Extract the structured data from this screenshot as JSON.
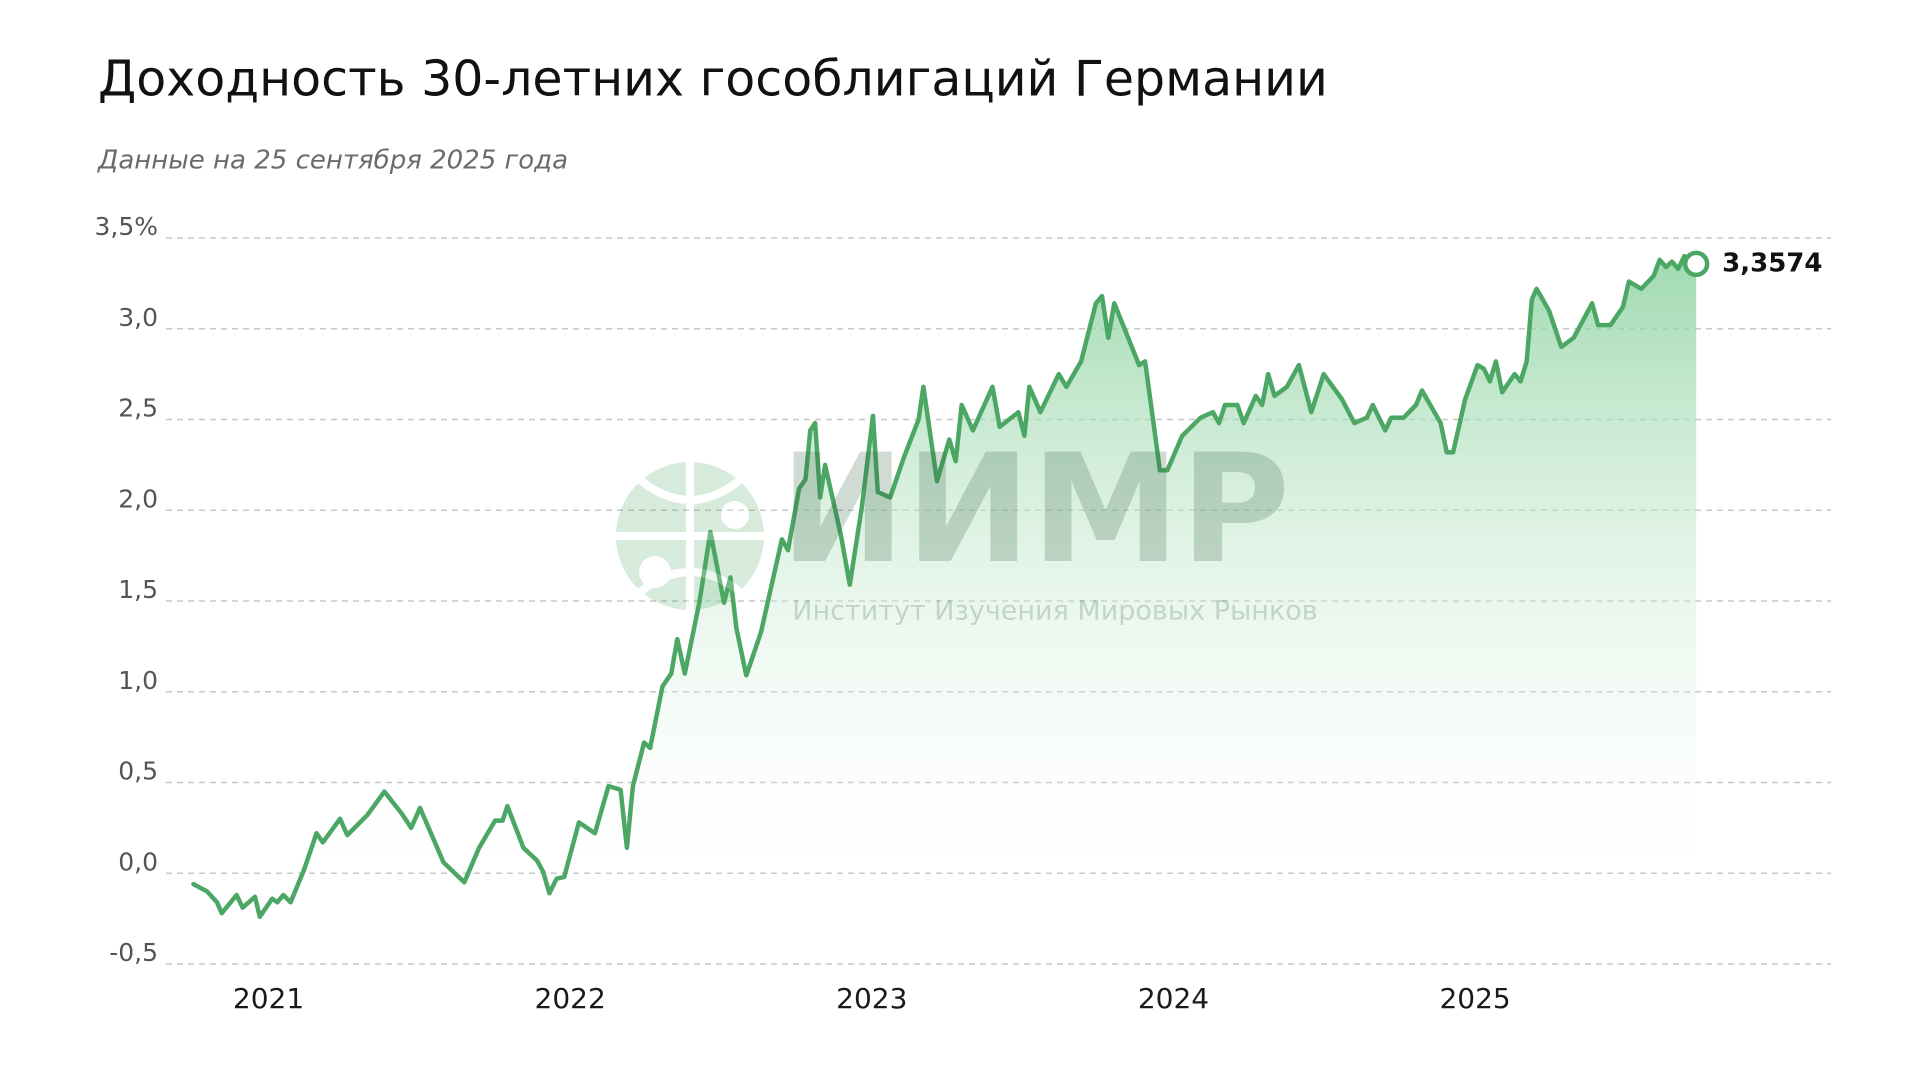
{
  "chart_data": {
    "type": "line",
    "title": "Доходность 30-летних гособлигаций Германии",
    "subtitle": "Данные на 25 сентября 2025 года",
    "watermark": {
      "logo": "ИИМР",
      "name": "Институт Изучения Мировых Рынков"
    },
    "color": "#4ca765",
    "grid": true,
    "x": [
      2020.751,
      2020.796,
      2020.829,
      2020.845,
      2020.894,
      2020.914,
      2020.955,
      2020.971,
      2021.012,
      2021.029,
      2021.049,
      2021.073,
      2021.118,
      2021.159,
      2021.18,
      2021.237,
      2021.261,
      2021.327,
      2021.384,
      2021.441,
      2021.473,
      2021.502,
      2021.58,
      2021.649,
      2021.698,
      2021.751,
      2021.776,
      2021.792,
      2021.845,
      2021.89,
      2021.91,
      2021.931,
      2021.955,
      2021.98,
      2022.029,
      2022.082,
      2022.127,
      2022.167,
      2022.188,
      2022.208,
      2022.245,
      2022.265,
      2022.306,
      2022.335,
      2022.355,
      2022.38,
      2022.429,
      2022.465,
      2022.51,
      2022.531,
      2022.551,
      2022.584,
      2022.633,
      2022.702,
      2022.722,
      2022.759,
      2022.78,
      2022.796,
      2022.812,
      2022.829,
      2022.845,
      2022.898,
      2022.927,
      2022.967,
      2023.004,
      2023.02,
      2023.061,
      2023.106,
      2023.155,
      2023.171,
      2023.216,
      2023.257,
      2023.278,
      2023.298,
      2023.335,
      2023.4,
      2023.424,
      2023.486,
      2023.506,
      2023.522,
      2023.559,
      2023.62,
      2023.645,
      2023.694,
      2023.743,
      2023.763,
      2023.784,
      2023.804,
      2023.845,
      2023.886,
      2023.906,
      2023.955,
      2023.98,
      2024.029,
      2024.09,
      2024.131,
      2024.151,
      2024.171,
      2024.212,
      2024.233,
      2024.273,
      2024.294,
      2024.314,
      2024.335,
      2024.376,
      2024.416,
      2024.457,
      2024.498,
      2024.559,
      2024.6,
      2024.641,
      2024.661,
      2024.702,
      2024.722,
      2024.763,
      2024.804,
      2024.824,
      2024.886,
      2024.906,
      2024.927,
      2024.967,
      2025.008,
      2025.029,
      2025.049,
      2025.069,
      2025.09,
      2025.131,
      2025.151,
      2025.171,
      2025.188,
      2025.204,
      2025.245,
      2025.286,
      2025.327,
      2025.388,
      2025.408,
      2025.449,
      2025.49,
      2025.51,
      2025.551,
      2025.592,
      2025.612,
      2025.633,
      2025.653,
      2025.673,
      2025.694,
      2025.714,
      2025.733
    ],
    "values": [
      -0.06,
      -0.1,
      -0.16,
      -0.22,
      -0.12,
      -0.19,
      -0.13,
      -0.24,
      -0.14,
      -0.16,
      -0.12,
      -0.16,
      0.02,
      0.22,
      0.17,
      0.3,
      0.21,
      0.32,
      0.45,
      0.33,
      0.25,
      0.36,
      0.06,
      -0.05,
      0.14,
      0.29,
      0.29,
      0.37,
      0.14,
      0.07,
      0.01,
      -0.11,
      -0.03,
      -0.02,
      0.28,
      0.22,
      0.48,
      0.46,
      0.14,
      0.48,
      0.72,
      0.69,
      1.03,
      1.1,
      1.29,
      1.1,
      1.5,
      1.88,
      1.49,
      1.63,
      1.35,
      1.09,
      1.33,
      1.84,
      1.78,
      2.12,
      2.17,
      2.44,
      2.48,
      2.07,
      2.25,
      1.86,
      1.59,
      2.02,
      2.52,
      2.1,
      2.07,
      2.29,
      2.5,
      2.68,
      2.16,
      2.39,
      2.27,
      2.58,
      2.44,
      2.68,
      2.46,
      2.54,
      2.41,
      2.68,
      2.54,
      2.75,
      2.68,
      2.82,
      3.14,
      3.18,
      2.95,
      3.14,
      2.97,
      2.8,
      2.82,
      2.22,
      2.22,
      2.41,
      2.51,
      2.54,
      2.48,
      2.58,
      2.58,
      2.48,
      2.63,
      2.58,
      2.75,
      2.63,
      2.68,
      2.8,
      2.54,
      2.75,
      2.61,
      2.48,
      2.51,
      2.58,
      2.44,
      2.51,
      2.51,
      2.58,
      2.66,
      2.48,
      2.32,
      2.32,
      2.61,
      2.8,
      2.78,
      2.71,
      2.82,
      2.65,
      2.75,
      2.71,
      2.82,
      3.16,
      3.22,
      3.1,
      2.9,
      2.95,
      3.14,
      3.02,
      3.02,
      3.12,
      3.26,
      3.22,
      3.29,
      3.38,
      3.34,
      3.37,
      3.33,
      3.4,
      3.36,
      3.3574
    ],
    "value_labels": [
      null,
      null,
      null,
      null,
      null,
      null,
      null,
      null,
      null,
      null,
      null,
      null,
      null,
      null,
      null,
      null,
      null,
      null,
      null,
      null,
      null,
      null,
      null,
      null,
      null,
      null,
      null,
      null,
      null,
      null,
      null,
      null,
      null,
      null,
      null,
      null,
      null,
      null,
      null,
      null,
      null,
      null,
      null,
      null,
      null,
      null,
      null,
      null,
      null,
      null,
      null,
      null,
      null,
      null,
      null,
      null,
      null,
      null,
      null,
      null,
      null,
      null,
      null,
      null,
      null,
      null,
      null,
      null,
      null,
      null,
      null,
      null,
      null,
      null,
      null,
      null,
      null,
      null,
      null,
      null,
      null,
      null,
      null,
      null,
      null,
      null,
      null,
      null,
      null,
      null,
      null,
      null,
      null,
      null,
      null,
      null,
      null,
      null,
      null,
      null,
      null,
      null,
      null,
      null,
      null,
      null,
      null,
      null,
      null,
      null,
      null,
      null,
      null,
      null,
      null,
      null,
      null,
      null,
      null,
      null,
      null,
      null,
      null,
      null,
      null,
      null,
      null,
      null,
      null,
      null,
      null,
      null,
      null,
      null,
      null,
      null,
      null,
      null,
      null,
      null,
      null,
      null,
      null,
      null,
      null,
      null,
      null,
      "3,3574"
    ],
    "xlim": [
      2020.66,
      2026.18
    ],
    "xticks": [
      2021,
      2022,
      2023,
      2024,
      2025
    ],
    "ylim": [
      -0.5,
      3.5
    ],
    "yticks": [
      {
        "value": -0.5,
        "label": "-0,5"
      },
      {
        "value": 0,
        "label": "0,0"
      },
      {
        "value": 0.5,
        "label": "0,5"
      },
      {
        "value": 1,
        "label": "1,0"
      },
      {
        "value": 1.5,
        "label": "1,5"
      },
      {
        "value": 2,
        "label": "2,0"
      },
      {
        "value": 2.5,
        "label": "2,5"
      },
      {
        "value": 3,
        "label": "3,0"
      },
      {
        "value": 3.5,
        "label": "3,5%"
      }
    ]
  }
}
